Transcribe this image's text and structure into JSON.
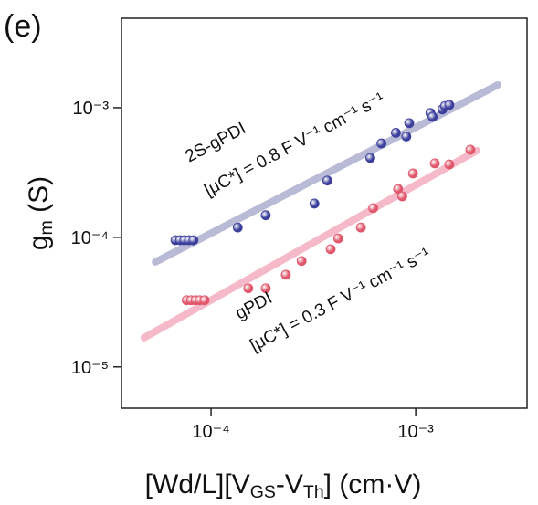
{
  "chart_data": {
    "type": "scatter",
    "panel_label": "(e)",
    "ylabel_parts": [
      {
        "text": "g"
      },
      {
        "text": "m",
        "sub": true
      },
      {
        "text": " (S)"
      }
    ],
    "xlabel_parts": [
      {
        "text": "[Wd/L][V"
      },
      {
        "text": "GS",
        "sub": true
      },
      {
        "text": "-V"
      },
      {
        "text": "Th",
        "sub": true
      },
      {
        "text": "] (cm·V)"
      }
    ],
    "xscale": "log",
    "yscale": "log",
    "xlim": [
      3.65e-05,
      0.0035
    ],
    "ylim": [
      4.8e-06,
      0.0049
    ],
    "xticks": [
      {
        "value": 0.0001,
        "label": "10⁻⁴"
      },
      {
        "value": 0.001,
        "label": "10⁻³"
      }
    ],
    "yticks": [
      {
        "value": 1e-05,
        "label": "10⁻⁵"
      },
      {
        "value": 0.0001,
        "label": "10⁻⁴"
      },
      {
        "value": 0.001,
        "label": "10⁻³"
      }
    ],
    "series": [
      {
        "name": "2S-gPDI",
        "annotation": "[μC*] = 0.8 F V⁻¹ cm⁻¹ s⁻¹",
        "color": "#3c3f9c",
        "text_color": "#2b2e7e",
        "x": [
          6.7e-05,
          7.05e-05,
          7.4e-05,
          7.8e-05,
          8.2e-05,
          0.000135,
          0.000185,
          0.00032,
          0.00037,
          0.0006,
          0.00068,
          0.0008,
          0.0009,
          0.00093,
          0.00118,
          0.00121,
          0.00135,
          0.00139,
          0.00146
        ],
        "values": [
          9.5e-05,
          9.5e-05,
          9.5e-05,
          9.5e-05,
          9.5e-05,
          0.000119,
          0.000148,
          0.000182,
          0.000274,
          0.00041,
          0.00053,
          0.00064,
          0.0006,
          0.00076,
          0.00091,
          0.00085,
          0.00097,
          0.00103,
          0.00105
        ],
        "fit": {
          "color": "#b9bad6",
          "x": [
            5.35e-05,
            0.00252
          ],
          "values": [
            6.45e-05,
            0.0015
          ]
        }
      },
      {
        "name": "gPDI",
        "annotation": "[μC*] = 0.3 F V⁻¹ cm⁻¹ s⁻¹",
        "color": "#e0566a",
        "text_color": "#8b1b3a",
        "x": [
          7.6e-05,
          8e-05,
          8.4e-05,
          8.8e-05,
          9.3e-05,
          0.000152,
          0.000185,
          0.000232,
          0.000277,
          0.000384,
          0.000418,
          0.00054,
          0.00062,
          0.00082,
          0.00086,
          0.00097,
          0.00124,
          0.00146,
          0.00185
        ],
        "values": [
          3.27e-05,
          3.27e-05,
          3.27e-05,
          3.27e-05,
          3.27e-05,
          4.04e-05,
          4.04e-05,
          5.14e-05,
          6.56e-05,
          8.1e-05,
          9.8e-05,
          0.000119,
          0.000168,
          0.000236,
          0.000207,
          0.000311,
          0.000372,
          0.000365,
          0.000474
        ],
        "fit": {
          "color": "#f5b9ca",
          "x": [
            4.72e-05,
            0.00199
          ],
          "values": [
            1.68e-05,
            0.000467
          ]
        }
      }
    ]
  }
}
